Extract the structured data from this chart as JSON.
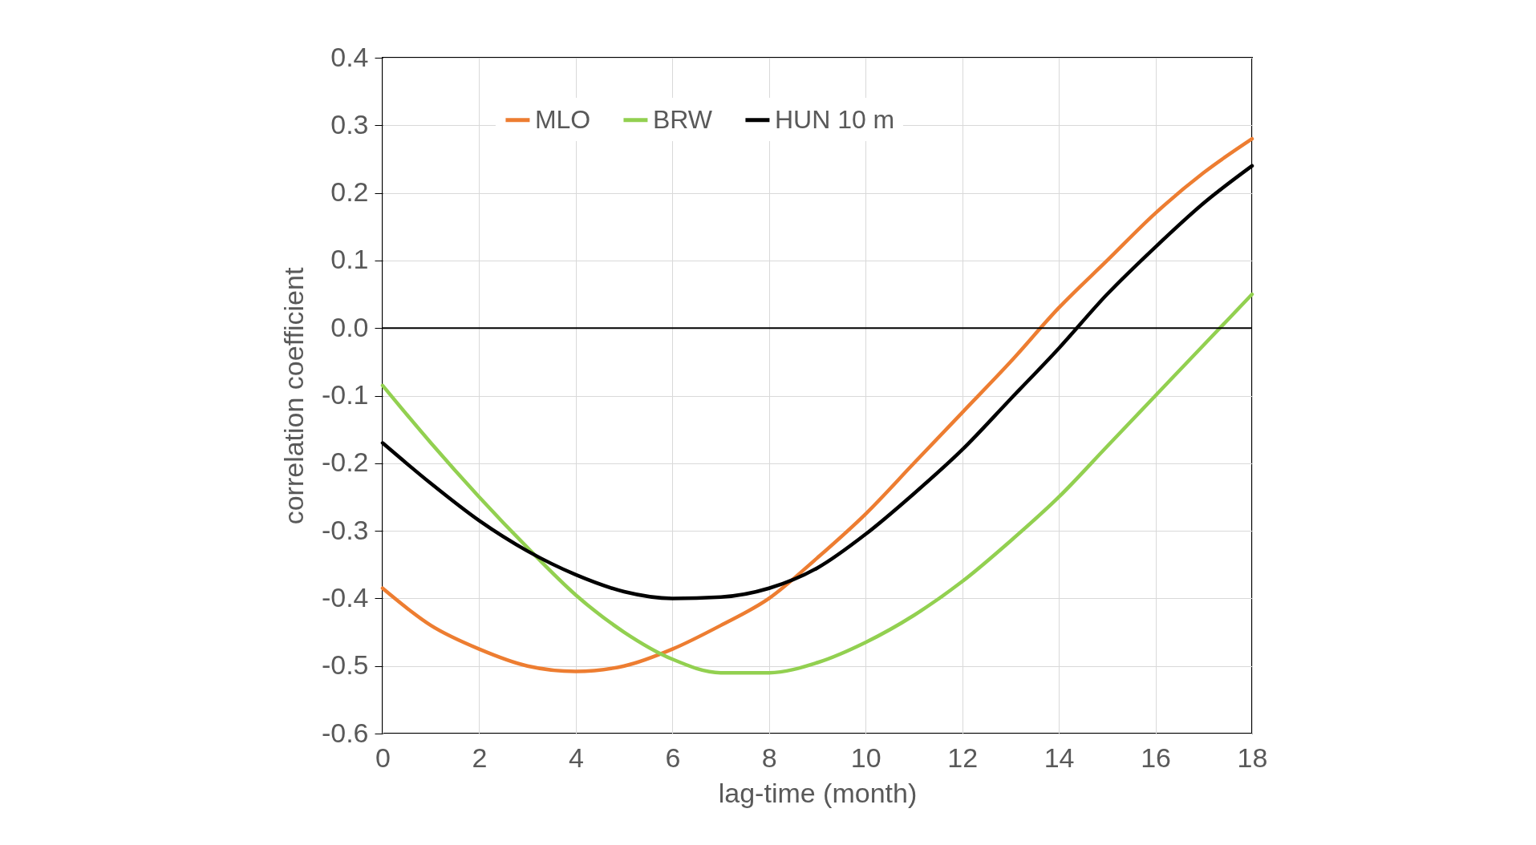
{
  "chart_data": {
    "type": "line",
    "xlabel": "lag-time (month)",
    "ylabel": "correlation coefficient",
    "x": [
      0,
      1,
      2,
      3,
      4,
      5,
      6,
      7,
      8,
      9,
      10,
      11,
      12,
      13,
      14,
      15,
      16,
      17,
      18
    ],
    "series": [
      {
        "name": "MLO",
        "color": "#ed7d31",
        "values": [
          -0.385,
          -0.44,
          -0.475,
          -0.5,
          -0.508,
          -0.5,
          -0.475,
          -0.44,
          -0.4,
          -0.34,
          -0.275,
          -0.2,
          -0.125,
          -0.05,
          0.03,
          0.1,
          0.17,
          0.23,
          0.28
        ]
      },
      {
        "name": "BRW",
        "color": "#92d050",
        "values": [
          -0.085,
          -0.17,
          -0.25,
          -0.325,
          -0.395,
          -0.45,
          -0.49,
          -0.51,
          -0.51,
          -0.495,
          -0.465,
          -0.425,
          -0.375,
          -0.315,
          -0.25,
          -0.175,
          -0.1,
          -0.025,
          0.05
        ]
      },
      {
        "name": "HUN 10 m",
        "color": "#000000",
        "values": [
          -0.17,
          -0.23,
          -0.285,
          -0.33,
          -0.365,
          -0.39,
          -0.4,
          -0.398,
          -0.385,
          -0.355,
          -0.305,
          -0.245,
          -0.18,
          -0.105,
          -0.03,
          0.05,
          0.12,
          0.185,
          0.24
        ]
      }
    ],
    "xlim": [
      0,
      18
    ],
    "xticks": [
      0,
      2,
      4,
      6,
      8,
      10,
      12,
      14,
      16,
      18
    ],
    "ylim": [
      -0.6,
      0.4
    ],
    "yticks": [
      {
        "value": -0.6,
        "label": "-0.6"
      },
      {
        "value": -0.5,
        "label": "-0.5"
      },
      {
        "value": -0.4,
        "label": "-0.4"
      },
      {
        "value": -0.3,
        "label": "-0.3"
      },
      {
        "value": -0.2,
        "label": "-0.2"
      },
      {
        "value": -0.1,
        "label": "-0.1"
      },
      {
        "value": 0,
        "label": "0.0"
      },
      {
        "value": 0.1,
        "label": "0.1"
      },
      {
        "value": 0.2,
        "label": "0.2"
      },
      {
        "value": 0.3,
        "label": "0.3"
      },
      {
        "value": 0.4,
        "label": "0.4"
      }
    ],
    "ref_lines": [
      {
        "axis": "y",
        "value": 0,
        "color": "#000000"
      }
    ],
    "grid": true,
    "legend": "top",
    "marker": "none",
    "line_style": "solid"
  }
}
